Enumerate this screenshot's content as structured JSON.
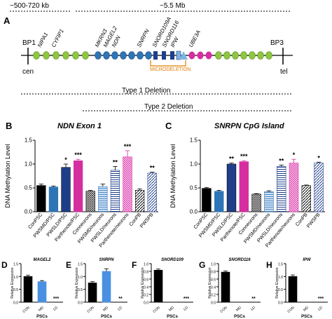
{
  "panel_a": {
    "label": "A",
    "span_left": "~500-720 kb",
    "span_right": "~5.5 Mb",
    "bp1": "BP1",
    "bp3": "BP3",
    "cen": "cen",
    "tel": "tel",
    "genes": [
      "NIPA1",
      "CYFIP1",
      "MKRN3",
      "MAGEL2",
      "NDN",
      "SNRPN",
      "SNORD109A",
      "SNORD116",
      "IPW",
      "UBE3A"
    ],
    "microdeletion": "MICRODELETION",
    "type1": "Type 1 Deletion",
    "type2": "Type 2 Deletion",
    "colors": {
      "green": "#8dc63f",
      "blue": "#2e75b6",
      "darkblue": "#1f3e8a",
      "magenta": "#d62ea0",
      "orange": "#e07b00"
    }
  },
  "panel_b": {
    "label": "B",
    "title": "NDN Exon 1",
    "ylabel": "DNA Methylation Level"
  },
  "panel_c": {
    "label": "C",
    "title": "SNRPN CpG Island",
    "ylabel": "DNA Methylation Level"
  },
  "bottom": {
    "ylabel": "Relative Expression",
    "xtitle": "PSCs"
  },
  "chart_data": [
    {
      "type": "bar",
      "panel": "B",
      "title": "NDN Exon 1",
      "ylabel": "DNA Methylation Level",
      "ylim": [
        0,
        1.5
      ],
      "yticks": [
        "0.0",
        "0.5",
        "1.0",
        "1.5"
      ],
      "categories": [
        "ConPSC",
        "PWSMD/PSC",
        "PWSLD/PSC",
        "Parthenote/PSC",
        "Conneurons",
        "PWSMD/neurons",
        "PWSLD/neurons",
        "Parthenote/neurons",
        "ConPB",
        "PWSPB"
      ],
      "values": [
        0.55,
        0.52,
        0.93,
        1.07,
        0.43,
        0.53,
        0.87,
        1.15,
        0.45,
        0.81
      ],
      "errors": [
        0.03,
        0.02,
        0.07,
        0.03,
        0.02,
        0.05,
        0.08,
        0.13,
        0.03,
        0.02
      ],
      "significance": [
        "",
        "",
        "*",
        "***",
        "",
        "",
        "**",
        "***",
        "",
        "**"
      ]
    },
    {
      "type": "bar",
      "panel": "C",
      "title": "SNRPN CpG Island",
      "ylabel": "DNA Methylation Level",
      "ylim": [
        0,
        1.5
      ],
      "yticks": [
        "0.0",
        "0.5",
        "1.0",
        "1.5"
      ],
      "categories": [
        "ConPSC",
        "PWSMD/PSC",
        "PWSLD/PSC",
        "Parthenote/PSC",
        "Conneurons",
        "PWSMD/neurons",
        "PWSLD/neurons",
        "Parthenote/neurons",
        "ConPB",
        "PWSPB"
      ],
      "values": [
        0.49,
        0.43,
        1.0,
        1.05,
        0.37,
        0.42,
        0.95,
        1.02,
        0.55,
        1.02
      ],
      "errors": [
        0.02,
        0.02,
        0.02,
        0.02,
        0.01,
        0.02,
        0.03,
        0.08,
        0.01,
        0.02
      ],
      "significance": [
        "",
        "",
        "**",
        "***",
        "",
        "",
        "**",
        "*",
        "",
        "*"
      ]
    },
    {
      "type": "bar",
      "panel": "D",
      "label": "D",
      "title": "MAGEL2",
      "ylabel": "Relative Expression",
      "xlabel": "PSCs",
      "ylim": [
        0,
        1.5
      ],
      "yticks": [
        "0.0",
        "0.5",
        "1.0",
        "1.5"
      ],
      "categories": [
        "CON",
        "MD",
        "LD"
      ],
      "values": [
        1.0,
        0.8,
        0.0
      ],
      "errors": [
        0.05,
        0.04,
        0
      ],
      "significance": [
        "",
        "",
        "***"
      ]
    },
    {
      "type": "bar",
      "panel": "E",
      "label": "E",
      "title": "SNRPN",
      "ylabel": "Relative Expression",
      "xlabel": "PSCs",
      "ylim": [
        0,
        1.5
      ],
      "yticks": [
        "0.0",
        "0.5",
        "1.0",
        "1.5"
      ],
      "categories": [
        "CON",
        "MD",
        "LD"
      ],
      "values": [
        0.75,
        1.2,
        0.0
      ],
      "errors": [
        0.05,
        0.1,
        0
      ],
      "significance": [
        "",
        "",
        "**"
      ]
    },
    {
      "type": "bar",
      "panel": "F",
      "label": "F",
      "title": "SNORD109",
      "ylabel": "Relative Expression",
      "xlabel": "PSCs",
      "ylim": [
        0,
        1.0
      ],
      "yticks": [
        "0.0",
        "0.2",
        "0.4",
        "0.6",
        "0.8",
        "1.0"
      ],
      "categories": [
        "CON",
        "MD",
        "LD"
      ],
      "values": [
        0.83,
        0.0,
        0.0
      ],
      "errors": [
        0.03,
        0,
        0
      ],
      "significance": [
        "",
        "",
        "***"
      ]
    },
    {
      "type": "bar",
      "panel": "G",
      "label": "G",
      "title": "SNORD116",
      "ylabel": "Relative Expression",
      "xlabel": "PSCs",
      "ylim": [
        0,
        1.0
      ],
      "yticks": [
        "0.0",
        "0.2",
        "0.4",
        "0.6",
        "0.8",
        "1.0"
      ],
      "categories": [
        "CON",
        "MD",
        "LD"
      ],
      "values": [
        0.78,
        0.0,
        0.0
      ],
      "errors": [
        0.03,
        0,
        0
      ],
      "significance": [
        "",
        "",
        "**"
      ]
    },
    {
      "type": "bar",
      "panel": "H",
      "label": "H",
      "title": "IPW",
      "ylabel": "Relative Expression",
      "xlabel": "PSCs",
      "ylim": [
        0,
        1.5
      ],
      "yticks": [
        "0.0",
        "0.5",
        "1.0",
        "1.5"
      ],
      "categories": [
        "CON",
        "MD",
        "LD"
      ],
      "values": [
        1.0,
        0.0,
        0.0
      ],
      "errors": [
        0.06,
        0,
        0
      ],
      "significance": [
        "",
        "",
        "***"
      ]
    }
  ]
}
